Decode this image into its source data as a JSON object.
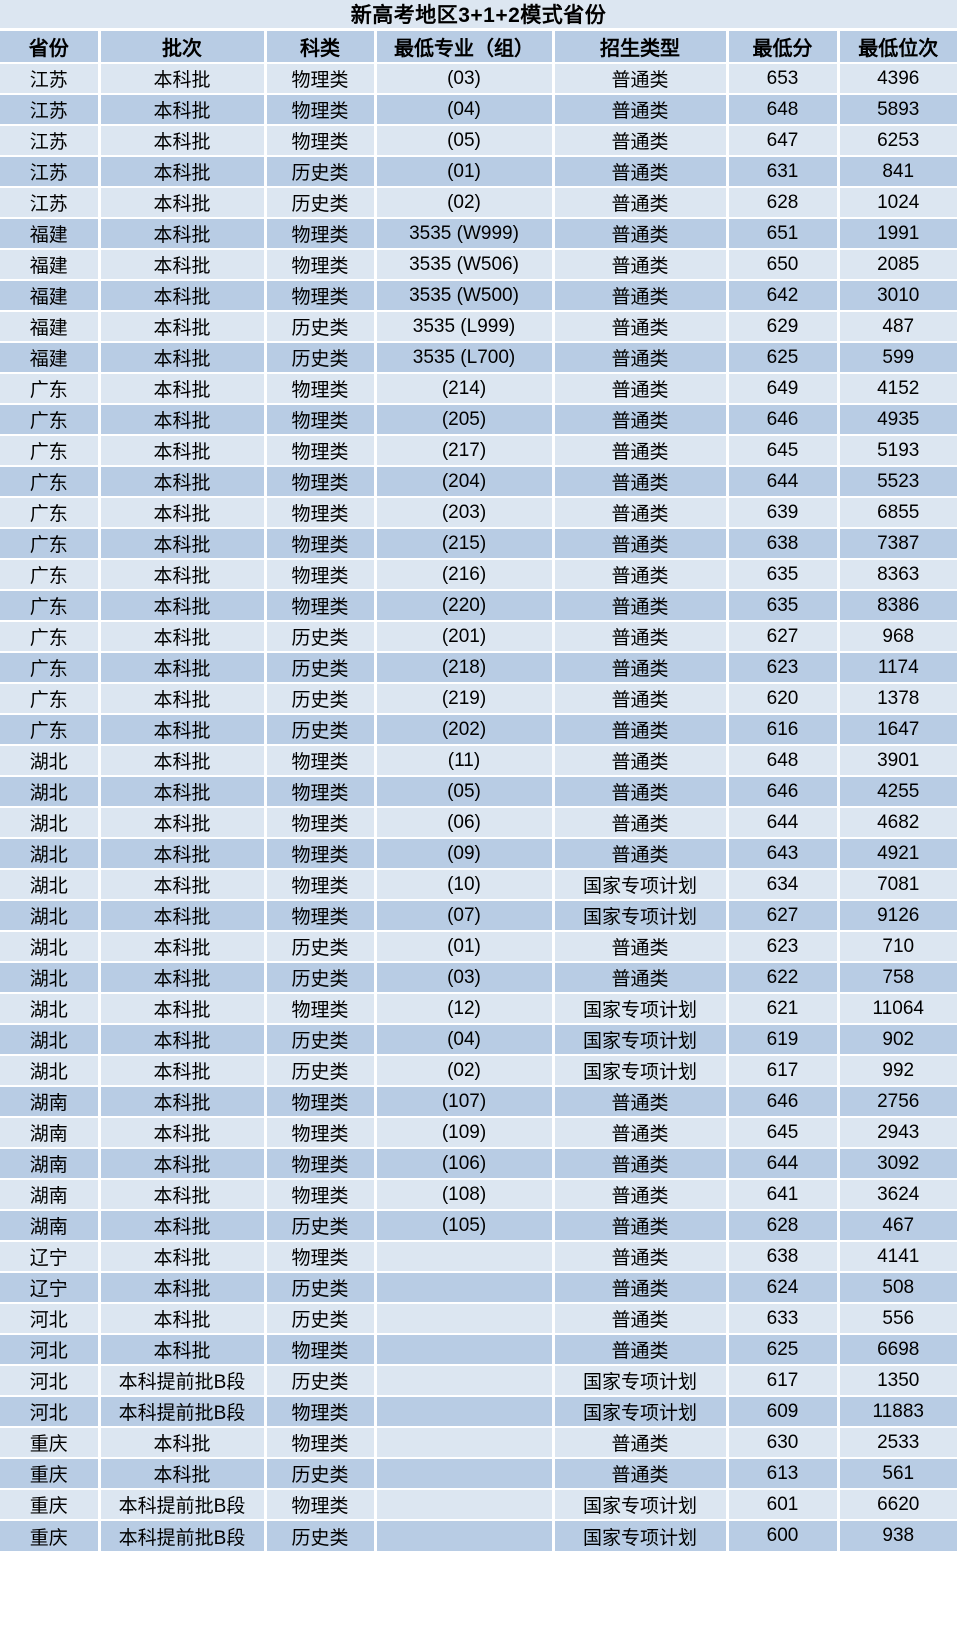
{
  "colors": {
    "light_row": "#dce6f1",
    "dark_row": "#b8cce4",
    "header_row": "#b8cce4",
    "gridline": "#ffffff",
    "text": "#000000"
  },
  "chart_data": {
    "type": "table",
    "title": "新高考地区3+1+2模式省份",
    "columns": [
      "省份",
      "批次",
      "科类",
      "最低专业（组）",
      "招生类型",
      "最低分",
      "最低位次"
    ],
    "rows": [
      [
        "江苏",
        "本科批",
        "物理类",
        "(03)",
        "普通类",
        653,
        4396
      ],
      [
        "江苏",
        "本科批",
        "物理类",
        "(04)",
        "普通类",
        648,
        5893
      ],
      [
        "江苏",
        "本科批",
        "物理类",
        "(05)",
        "普通类",
        647,
        6253
      ],
      [
        "江苏",
        "本科批",
        "历史类",
        "(01)",
        "普通类",
        631,
        841
      ],
      [
        "江苏",
        "本科批",
        "历史类",
        "(02)",
        "普通类",
        628,
        1024
      ],
      [
        "福建",
        "本科批",
        "物理类",
        "3535 (W999)",
        "普通类",
        651,
        1991
      ],
      [
        "福建",
        "本科批",
        "物理类",
        "3535 (W506)",
        "普通类",
        650,
        2085
      ],
      [
        "福建",
        "本科批",
        "物理类",
        "3535 (W500)",
        "普通类",
        642,
        3010
      ],
      [
        "福建",
        "本科批",
        "历史类",
        "3535 (L999)",
        "普通类",
        629,
        487
      ],
      [
        "福建",
        "本科批",
        "历史类",
        "3535 (L700)",
        "普通类",
        625,
        599
      ],
      [
        "广东",
        "本科批",
        "物理类",
        "(214)",
        "普通类",
        649,
        4152
      ],
      [
        "广东",
        "本科批",
        "物理类",
        "(205)",
        "普通类",
        646,
        4935
      ],
      [
        "广东",
        "本科批",
        "物理类",
        "(217)",
        "普通类",
        645,
        5193
      ],
      [
        "广东",
        "本科批",
        "物理类",
        "(204)",
        "普通类",
        644,
        5523
      ],
      [
        "广东",
        "本科批",
        "物理类",
        "(203)",
        "普通类",
        639,
        6855
      ],
      [
        "广东",
        "本科批",
        "物理类",
        "(215)",
        "普通类",
        638,
        7387
      ],
      [
        "广东",
        "本科批",
        "物理类",
        "(216)",
        "普通类",
        635,
        8363
      ],
      [
        "广东",
        "本科批",
        "物理类",
        "(220)",
        "普通类",
        635,
        8386
      ],
      [
        "广东",
        "本科批",
        "历史类",
        "(201)",
        "普通类",
        627,
        968
      ],
      [
        "广东",
        "本科批",
        "历史类",
        "(218)",
        "普通类",
        623,
        1174
      ],
      [
        "广东",
        "本科批",
        "历史类",
        "(219)",
        "普通类",
        620,
        1378
      ],
      [
        "广东",
        "本科批",
        "历史类",
        "(202)",
        "普通类",
        616,
        1647
      ],
      [
        "湖北",
        "本科批",
        "物理类",
        "(11)",
        "普通类",
        648,
        3901
      ],
      [
        "湖北",
        "本科批",
        "物理类",
        "(05)",
        "普通类",
        646,
        4255
      ],
      [
        "湖北",
        "本科批",
        "物理类",
        "(06)",
        "普通类",
        644,
        4682
      ],
      [
        "湖北",
        "本科批",
        "物理类",
        "(09)",
        "普通类",
        643,
        4921
      ],
      [
        "湖北",
        "本科批",
        "物理类",
        "(10)",
        "国家专项计划",
        634,
        7081
      ],
      [
        "湖北",
        "本科批",
        "物理类",
        "(07)",
        "国家专项计划",
        627,
        9126
      ],
      [
        "湖北",
        "本科批",
        "历史类",
        "(01)",
        "普通类",
        623,
        710
      ],
      [
        "湖北",
        "本科批",
        "历史类",
        "(03)",
        "普通类",
        622,
        758
      ],
      [
        "湖北",
        "本科批",
        "物理类",
        "(12)",
        "国家专项计划",
        621,
        11064
      ],
      [
        "湖北",
        "本科批",
        "历史类",
        "(04)",
        "国家专项计划",
        619,
        902
      ],
      [
        "湖北",
        "本科批",
        "历史类",
        "(02)",
        "国家专项计划",
        617,
        992
      ],
      [
        "湖南",
        "本科批",
        "物理类",
        "(107)",
        "普通类",
        646,
        2756
      ],
      [
        "湖南",
        "本科批",
        "物理类",
        "(109)",
        "普通类",
        645,
        2943
      ],
      [
        "湖南",
        "本科批",
        "物理类",
        "(106)",
        "普通类",
        644,
        3092
      ],
      [
        "湖南",
        "本科批",
        "物理类",
        "(108)",
        "普通类",
        641,
        3624
      ],
      [
        "湖南",
        "本科批",
        "历史类",
        "(105)",
        "普通类",
        628,
        467
      ],
      [
        "辽宁",
        "本科批",
        "物理类",
        "",
        "普通类",
        638,
        4141
      ],
      [
        "辽宁",
        "本科批",
        "历史类",
        "",
        "普通类",
        624,
        508
      ],
      [
        "河北",
        "本科批",
        "历史类",
        "",
        "普通类",
        633,
        556
      ],
      [
        "河北",
        "本科批",
        "物理类",
        "",
        "普通类",
        625,
        6698
      ],
      [
        "河北",
        "本科提前批B段",
        "历史类",
        "",
        "国家专项计划",
        617,
        1350
      ],
      [
        "河北",
        "本科提前批B段",
        "物理类",
        "",
        "国家专项计划",
        609,
        11883
      ],
      [
        "重庆",
        "本科批",
        "物理类",
        "",
        "普通类",
        630,
        2533
      ],
      [
        "重庆",
        "本科批",
        "历史类",
        "",
        "普通类",
        613,
        561
      ],
      [
        "重庆",
        "本科提前批B段",
        "物理类",
        "",
        "国家专项计划",
        601,
        6620
      ],
      [
        "重庆",
        "本科提前批B段",
        "历史类",
        "",
        "国家专项计划",
        600,
        938
      ]
    ]
  }
}
